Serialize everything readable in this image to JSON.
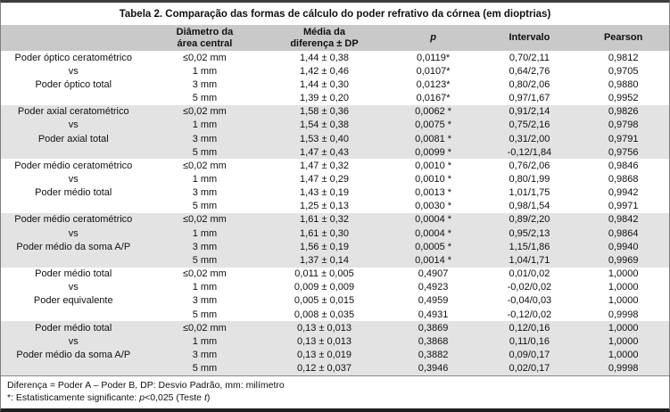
{
  "table": {
    "title": "Tabela 2. Comparação das formas de cálculo do poder refrativo da córnea (em dioptrias)",
    "header": {
      "comparison": "",
      "diameter_l1": "Diâmetro da",
      "diameter_l2": "área central",
      "mean_l1": "Média da",
      "mean_l2": "diferença ± DP",
      "p": "p",
      "interval": "Intervalo",
      "pearson": "Pearson"
    },
    "groups": [
      {
        "shaded": false,
        "rows": [
          {
            "label": "Poder óptico ceratométrico",
            "diameter": "≤0,02 mm",
            "mean": "1,44 ± 0,38",
            "p": "0,0119*",
            "interval": "0,70/2,11",
            "pearson": "0,9812"
          },
          {
            "label": "vs",
            "diameter": "1 mm",
            "mean": "1,42 ± 0,46",
            "p": "0,0107*",
            "interval": "0,64/2,76",
            "pearson": "0,9705"
          },
          {
            "label": "Poder óptico total",
            "diameter": "3 mm",
            "mean": "1,44 ± 0,30",
            "p": "0,0123*",
            "interval": "0,80/2,06",
            "pearson": "0,9880"
          },
          {
            "label": "",
            "diameter": "5 mm",
            "mean": "1,39 ± 0,20",
            "p": "0,0167*",
            "interval": "0,97/1,67",
            "pearson": "0,9952"
          }
        ]
      },
      {
        "shaded": true,
        "rows": [
          {
            "label": "Poder axial ceratométrico",
            "diameter": "≤0,02 mm",
            "mean": "1,58 ± 0,36",
            "p": "0,0062 *",
            "interval": "0,91/2,14",
            "pearson": "0,9826"
          },
          {
            "label": "vs",
            "diameter": "1 mm",
            "mean": "1,54 ± 0,38",
            "p": "0,0075 *",
            "interval": "0,75/2,16",
            "pearson": "0,9798"
          },
          {
            "label": "Poder axial total",
            "diameter": "3 mm",
            "mean": "1,53 ± 0,40",
            "p": "0,0081 *",
            "interval": "0,31/2,00",
            "pearson": "0,9791"
          },
          {
            "label": "",
            "diameter": "5 mm",
            "mean": "1,47 ± 0,43",
            "p": "0,0099 *",
            "interval": "-0,12/1,84",
            "pearson": "0,9756"
          }
        ]
      },
      {
        "shaded": false,
        "rows": [
          {
            "label": "Poder médio ceratométrico",
            "diameter": "≤0,02 mm",
            "mean": "1,47 ± 0,32",
            "p": "0,0010 *",
            "interval": "0,76/2,06",
            "pearson": "0,9846"
          },
          {
            "label": "vs",
            "diameter": "1 mm",
            "mean": "1,47 ± 0,29",
            "p": "0,0010 *",
            "interval": "0,80/1,99",
            "pearson": "0,9868"
          },
          {
            "label": "Poder médio total",
            "diameter": "3 mm",
            "mean": "1,43 ± 0,19",
            "p": "0,0013 *",
            "interval": "1,01/1,75",
            "pearson": "0,9942"
          },
          {
            "label": "",
            "diameter": "5 mm",
            "mean": "1,25 ± 0,13",
            "p": "0,0030 *",
            "interval": "0,98/1,54",
            "pearson": "0,9971"
          }
        ]
      },
      {
        "shaded": true,
        "rows": [
          {
            "label": "Poder médio ceratométrico",
            "diameter": "≤0,02 mm",
            "mean": "1,61 ± 0,32",
            "p": "0,0004 *",
            "interval": "0,89/2,20",
            "pearson": "0,9842"
          },
          {
            "label": "vs",
            "diameter": "1 mm",
            "mean": "1,61 ± 0,30",
            "p": "0,0004 *",
            "interval": "0,95/2,13",
            "pearson": "0,9864"
          },
          {
            "label": "Poder médio da soma A/P",
            "diameter": "3 mm",
            "mean": "1,56 ± 0,19",
            "p": "0,0005 *",
            "interval": "1,15/1,86",
            "pearson": "0,9940"
          },
          {
            "label": "",
            "diameter": "5 mm",
            "mean": "1,37 ± 0,14",
            "p": "0,0014 *",
            "interval": "1,04/1,71",
            "pearson": "0,9969"
          }
        ]
      },
      {
        "shaded": false,
        "rows": [
          {
            "label": "Poder médio total",
            "diameter": "≤0,02 mm",
            "mean": "0,011 ± 0,005",
            "p": "0,4907",
            "interval": "0,01/0,02",
            "pearson": "1,0000"
          },
          {
            "label": "vs",
            "diameter": "1 mm",
            "mean": "0,009 ± 0,009",
            "p": "0,4923",
            "interval": "-0,02/0,02",
            "pearson": "1,0000"
          },
          {
            "label": "Poder equivalente",
            "diameter": "3 mm",
            "mean": "0,005 ± 0,015",
            "p": "0,4959",
            "interval": "-0,04/0,03",
            "pearson": "1,0000"
          },
          {
            "label": "",
            "diameter": "5 mm",
            "mean": "0,008 ± 0,035",
            "p": "0,4931",
            "interval": "-0,12/0,02",
            "pearson": "0,9998"
          }
        ]
      },
      {
        "shaded": true,
        "rows": [
          {
            "label": "Poder médio total",
            "diameter": "≤0,02 mm",
            "mean": "0,13 ± 0,013",
            "p": "0,3869",
            "interval": "0,12/0,16",
            "pearson": "1,0000"
          },
          {
            "label": "vs",
            "diameter": "1 mm",
            "mean": "0,13 ± 0,013",
            "p": "0,3868",
            "interval": "0,11/0,16",
            "pearson": "1,0000"
          },
          {
            "label": "Poder médio da soma A/P",
            "diameter": "3 mm",
            "mean": "0,13 ± 0,019",
            "p": "0,3882",
            "interval": "0,09/0,17",
            "pearson": "1,0000"
          },
          {
            "label": "",
            "diameter": "5 mm",
            "mean": "0,12 ± 0,037",
            "p": "0,3946",
            "interval": "0,02/0,17",
            "pearson": "0,9998"
          }
        ]
      }
    ],
    "footnote1": "Diferença = Poder A – Poder B, DP: Desvio Padrão, mm: milímetro",
    "footnote2": {
      "star": "*",
      "text_a": ": Estatisticamente significante: ",
      "p": "p",
      "text_b": "<0,025 (Teste ",
      "t": "t",
      "text_c": ")"
    },
    "colors": {
      "header_band_bg": "#c9c9c9",
      "shaded_row_bg": "#e3e3e3",
      "top_rule": "#3d3d3d",
      "bottom_rule": "#1f1f1f"
    }
  }
}
